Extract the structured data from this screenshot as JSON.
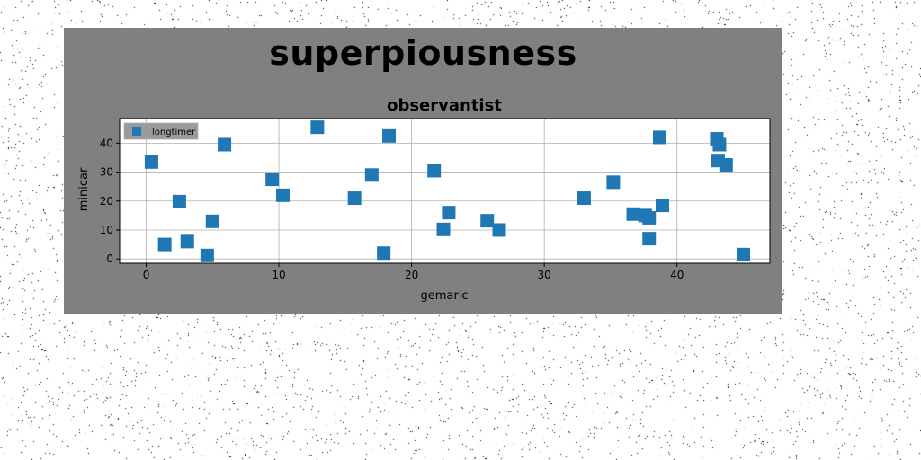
{
  "figure": {
    "suptitle": "superpiousness",
    "background": "#808080"
  },
  "chart_data": {
    "type": "scatter",
    "title": "observantist",
    "xlabel": "gemaric",
    "ylabel": "minicar",
    "xlim": [
      -2,
      47
    ],
    "ylim": [
      -1.5,
      48.5
    ],
    "xticks": [
      0,
      10,
      20,
      30,
      40
    ],
    "yticks": [
      0,
      10,
      20,
      30,
      40
    ],
    "grid": true,
    "legend_position": "top-left",
    "marker": "square",
    "series": [
      {
        "name": "longtimer",
        "color": "#1f77b4",
        "points": [
          [
            0.4,
            33.5
          ],
          [
            1.4,
            5
          ],
          [
            2.5,
            19.8
          ],
          [
            3.1,
            6
          ],
          [
            4.6,
            1.2
          ],
          [
            5.0,
            13
          ],
          [
            5.9,
            39.5
          ],
          [
            9.5,
            27.5
          ],
          [
            10.3,
            22
          ],
          [
            12.9,
            45.5
          ],
          [
            15.7,
            21
          ],
          [
            17.0,
            29
          ],
          [
            17.9,
            2
          ],
          [
            18.3,
            42.5
          ],
          [
            21.7,
            30.5
          ],
          [
            22.4,
            10.2
          ],
          [
            22.8,
            16
          ],
          [
            25.7,
            13.2
          ],
          [
            26.6,
            10
          ],
          [
            33.0,
            21
          ],
          [
            35.2,
            26.5
          ],
          [
            36.7,
            15.5
          ],
          [
            37.6,
            15
          ],
          [
            37.9,
            7
          ],
          [
            37.9,
            14.2
          ],
          [
            38.7,
            42
          ],
          [
            38.9,
            18.5
          ],
          [
            43.0,
            41.5
          ],
          [
            43.2,
            39.5
          ],
          [
            43.1,
            34
          ],
          [
            43.7,
            32.5
          ],
          [
            45.0,
            1.5
          ]
        ]
      }
    ]
  }
}
